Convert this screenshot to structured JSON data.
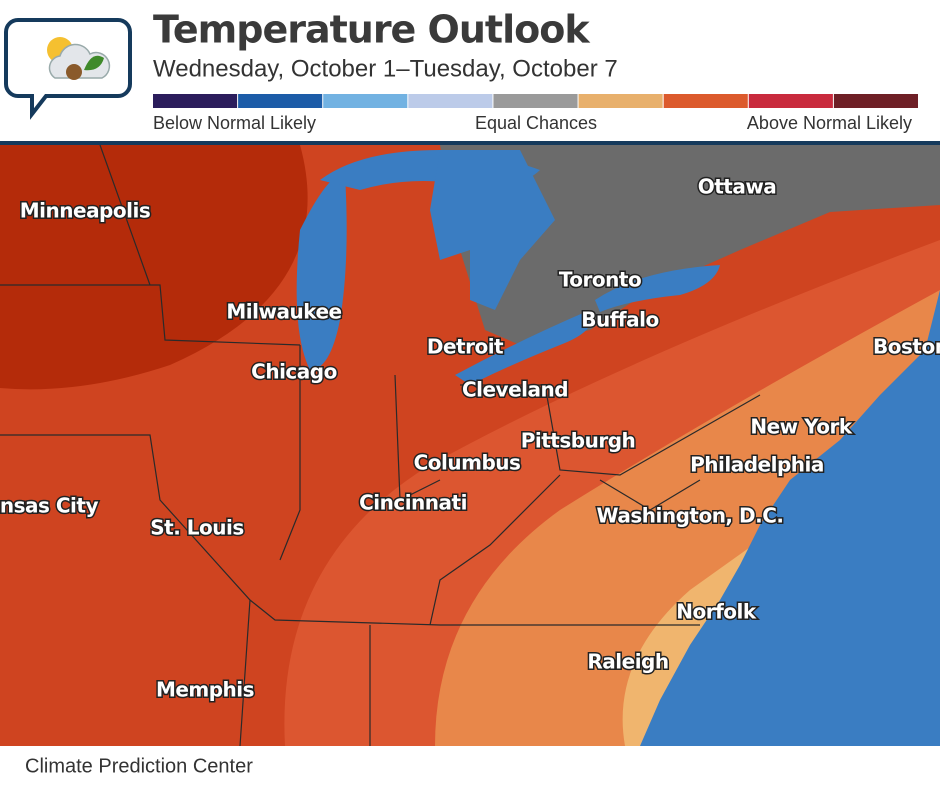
{
  "header": {
    "title": "Temperature Outlook",
    "subtitle": "Wednesday, October 1–Tuesday, October 7"
  },
  "legend": {
    "colors": [
      "#2b1d5c",
      "#1c5ca8",
      "#72b2e2",
      "#bccbe9",
      "#9a9a9a",
      "#e8b06c",
      "#dc5a2c",
      "#c92a3d",
      "#6e1f26"
    ],
    "labels": [
      "Below Normal Likely",
      "Equal Chances",
      "Above Normal Likely"
    ]
  },
  "cities": [
    "Minneapolis",
    "Milwaukee",
    "Chicago",
    "Detroit",
    "Cleveland",
    "Toronto",
    "Buffalo",
    "Ottawa",
    "Pittsburgh",
    "Columbus",
    "Cincinnati",
    "Kansas City",
    "St. Louis",
    "New York",
    "Philadelphia",
    "Washington, D.C.",
    "Norfolk",
    "Raleigh",
    "Memphis",
    "Boston"
  ],
  "source": "Climate Prediction Center"
}
